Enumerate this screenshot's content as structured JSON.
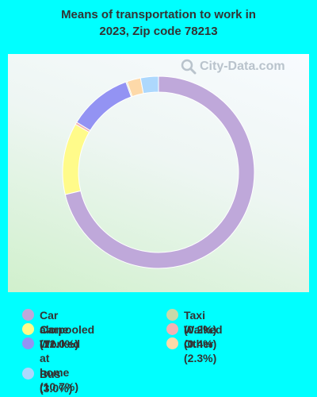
{
  "header": {
    "title_line1": "Means of transportation to work in",
    "title_line2": "2023, Zip code 78213"
  },
  "watermark": {
    "text": "City-Data.com",
    "icon": "magnifier-icon"
  },
  "chart_data": {
    "type": "pie",
    "title": "Means of transportation to work in 2023, Zip code 78213",
    "donut": true,
    "legend_position": "bottom",
    "slices": [
      {
        "name": "Car alone",
        "value": 71.0,
        "label": "Car alone (71.0%)",
        "color": "#bfa8da"
      },
      {
        "name": "Carpooled",
        "value": 12.0,
        "label": "Carpooled (12.0%)",
        "color": "#fffb8a"
      },
      {
        "name": "Walked",
        "value": 0.4,
        "label": "Walked (0.4%)",
        "color": "#f2b3b3"
      },
      {
        "name": "Worked at home",
        "value": 10.7,
        "label": "Worked\nat home (10.7%)",
        "color": "#9393f3"
      },
      {
        "name": "Taxi",
        "value": 0.2,
        "label": "Taxi (0.2%)",
        "color": "#c9d9a8"
      },
      {
        "name": "Other",
        "value": 2.3,
        "label": "Other (2.3%)",
        "color": "#fdd9a9"
      },
      {
        "name": "Bus",
        "value": 3.0,
        "label": "Bus (3.0%)",
        "color": "#add8fd"
      }
    ],
    "legend_order": [
      "Car alone",
      "Carpooled",
      "Worked at home",
      "Bus",
      "Taxi",
      "Walked",
      "Other"
    ]
  }
}
